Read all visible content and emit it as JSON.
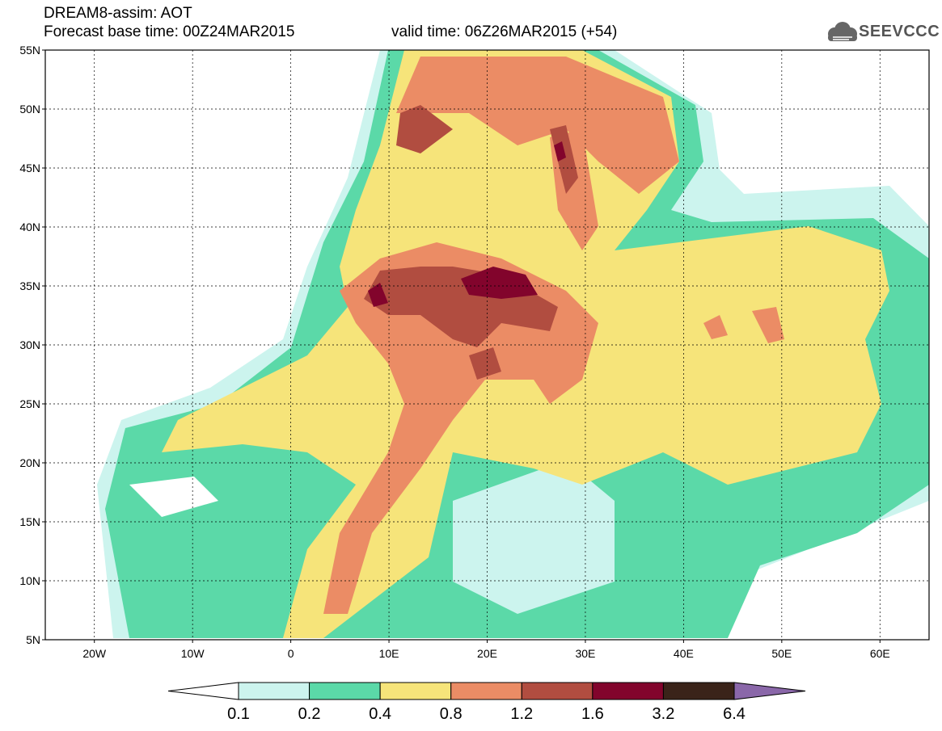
{
  "header": {
    "line1": "DREAM8-assim: AOT",
    "line2": "Forecast base time: 00Z24MAR2015",
    "line3": "valid time: 06Z26MAR2015 (+54)"
  },
  "logo": {
    "text": "SEEVCCC",
    "icon": "cloud-icon"
  },
  "map": {
    "lon_range": [
      -25,
      65
    ],
    "lat_range": [
      5,
      55
    ],
    "grid": "dashed",
    "lat_ticks": [
      "5N",
      "10N",
      "15N",
      "20N",
      "25N",
      "30N",
      "35N",
      "40N",
      "45N",
      "50N",
      "55N"
    ],
    "lon_ticks": [
      "20W",
      "10W",
      "0",
      "10E",
      "20E",
      "30E",
      "40E",
      "50E",
      "60E"
    ]
  },
  "colorbar": {
    "labels": [
      "0.1",
      "0.2",
      "0.4",
      "0.8",
      "1.2",
      "1.6",
      "3.2",
      "6.4"
    ],
    "colors": [
      "#ccf4ee",
      "#5bd9a8",
      "#f6e47a",
      "#eb8c65",
      "#b14d40",
      "#82042c",
      "#3a2319",
      "#8a67a9"
    ]
  }
}
